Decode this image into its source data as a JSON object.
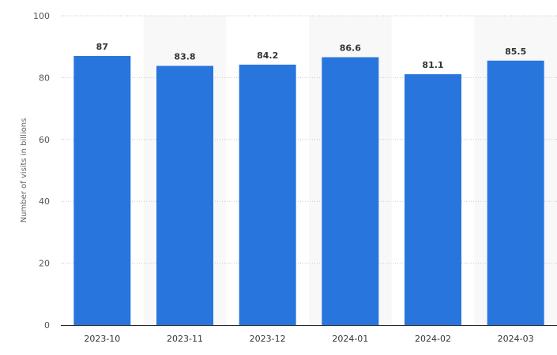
{
  "chart_data": {
    "type": "bar",
    "title": "",
    "xlabel": "",
    "ylabel": "Number of visits in billions",
    "categories": [
      "2023-10",
      "2023-11",
      "2023-12",
      "2024-01",
      "2024-02",
      "2024-03"
    ],
    "values": [
      87,
      83.8,
      84.2,
      86.6,
      81.1,
      85.5
    ],
    "value_labels": [
      "87",
      "83.8",
      "84.2",
      "86.6",
      "81.1",
      "85.5"
    ],
    "ylim": [
      0,
      100
    ],
    "yticks": [
      0,
      20,
      40,
      60,
      80,
      100
    ],
    "ytick_labels": [
      "0",
      "20",
      "40",
      "60",
      "80",
      "100"
    ],
    "grid": true,
    "legend": "none",
    "colors": {
      "bar": "#2876DD",
      "band": "#F8F8F8",
      "grid": "#C8C8C8",
      "axis": "#222222"
    }
  }
}
